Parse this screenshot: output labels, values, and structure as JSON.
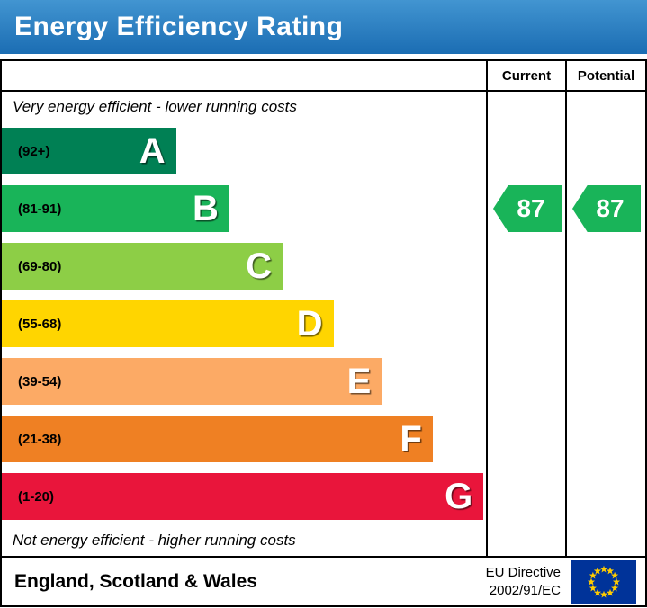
{
  "header": {
    "title": "Energy Efficiency Rating"
  },
  "table": {
    "current_label": "Current",
    "potential_label": "Potential",
    "top_note": "Very energy efficient - lower running costs",
    "bottom_note": "Not energy efficient - higher running costs"
  },
  "bands": [
    {
      "letter": "A",
      "range": "(92+)",
      "color": "#008054",
      "width_pct": 36
    },
    {
      "letter": "B",
      "range": "(81-91)",
      "color": "#19b459",
      "width_pct": 47
    },
    {
      "letter": "C",
      "range": "(69-80)",
      "color": "#8dce46",
      "width_pct": 58
    },
    {
      "letter": "D",
      "range": "(55-68)",
      "color": "#ffd500",
      "width_pct": 68.5
    },
    {
      "letter": "E",
      "range": "(39-54)",
      "color": "#fcaa65",
      "width_pct": 78.5
    },
    {
      "letter": "F",
      "range": "(21-38)",
      "color": "#ef8023",
      "width_pct": 89
    },
    {
      "letter": "G",
      "range": "(1-20)",
      "color": "#e9153b",
      "width_pct": 99.5
    }
  ],
  "ratings": {
    "current": {
      "value": "87",
      "color": "#19b459"
    },
    "potential": {
      "value": "87",
      "color": "#19b459"
    }
  },
  "footer": {
    "region": "England, Scotland & Wales",
    "directive_line1": "EU Directive",
    "directive_line2": "2002/91/EC",
    "flag": {
      "field_color": "#003399",
      "star_color": "#ffcc00"
    }
  },
  "chart_data": {
    "type": "bar",
    "title": "Energy Efficiency Rating",
    "categories": [
      "A (92+)",
      "B (81-91)",
      "C (69-80)",
      "D (55-68)",
      "E (39-54)",
      "F (21-38)",
      "G (1-20)"
    ],
    "values": [
      36,
      47,
      58,
      68.5,
      78.5,
      89,
      99.5
    ],
    "values_note": "relative bar widths in % of plot area (decorative band lengths)",
    "series": [
      {
        "name": "Current rating",
        "values": [
          87
        ]
      },
      {
        "name": "Potential rating",
        "values": [
          87
        ]
      }
    ],
    "annotations": [
      "Very energy efficient - lower running costs",
      "Not energy efficient - higher running costs"
    ],
    "legend_position": "right-columns",
    "grid": false
  }
}
